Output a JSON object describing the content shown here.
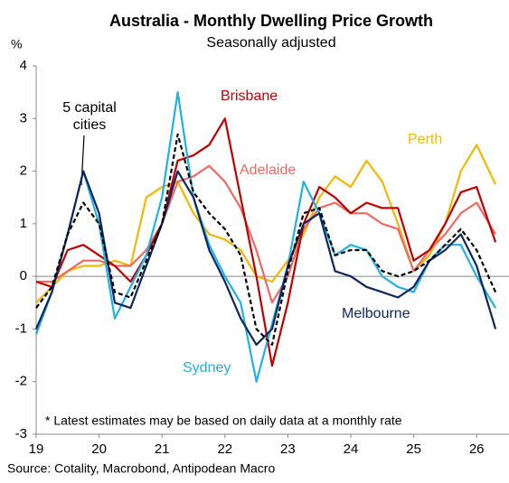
{
  "chart_data": {
    "type": "line",
    "title": "Australia - Monthly Dwelling Price Growth",
    "subtitle": "Seasonally adjusted",
    "y_label": "%",
    "annotation": "* Latest estimates may be based on daily data at a monthly rate",
    "source": "Source: Cotality, Macrobond, Antipodean Macro",
    "x": [
      19,
      19.25,
      19.5,
      19.75,
      20,
      20.25,
      20.5,
      20.75,
      21,
      21.25,
      21.5,
      21.75,
      22,
      22.25,
      22.5,
      22.75,
      23,
      23.25,
      23.5,
      23.75,
      24,
      24.25,
      24.5,
      24.75,
      25,
      25.25,
      25.5,
      25.75,
      26,
      26.3
    ],
    "xlim": [
      19,
      26.55
    ],
    "xticks": [
      19,
      20,
      21,
      22,
      23,
      24,
      25,
      26
    ],
    "ylim": [
      -3,
      4
    ],
    "yticks": [
      -3,
      -2,
      -1,
      0,
      1,
      2,
      3,
      4
    ],
    "series": [
      {
        "name": "Perth",
        "color": "#f5b800",
        "values": [
          -0.5,
          -0.2,
          0.1,
          0.2,
          0.2,
          0.3,
          0.2,
          1.5,
          1.7,
          1.8,
          1.2,
          0.8,
          0.7,
          0.5,
          0.0,
          -0.1,
          0.3,
          0.8,
          1.5,
          1.9,
          1.7,
          2.2,
          1.8,
          1.0,
          0.1,
          0.4,
          1.0,
          2.0,
          2.5,
          1.75
        ]
      },
      {
        "name": "Adelaide",
        "color": "#ee6a62",
        "values": [
          -0.1,
          -0.1,
          0.1,
          0.3,
          0.3,
          0.2,
          0.2,
          0.5,
          1.0,
          1.8,
          1.9,
          2.1,
          1.8,
          1.3,
          0.5,
          -0.5,
          0.0,
          0.9,
          1.3,
          1.4,
          1.2,
          1.2,
          1.0,
          0.9,
          0.1,
          0.5,
          0.8,
          1.2,
          1.4,
          0.8
        ]
      },
      {
        "name": "Brisbane",
        "color": "#c00000",
        "values": [
          -0.1,
          -0.2,
          0.5,
          0.6,
          0.4,
          0.2,
          -0.1,
          0.4,
          1.0,
          2.2,
          2.3,
          2.5,
          3.0,
          1.5,
          0.0,
          -1.7,
          -0.5,
          1.0,
          1.7,
          1.5,
          1.2,
          1.4,
          1.3,
          1.3,
          0.3,
          0.5,
          1.0,
          1.6,
          1.7,
          0.65
        ]
      },
      {
        "name": "Sydney",
        "color": "#1fb2e6",
        "values": [
          -1.1,
          -0.3,
          0.8,
          2.0,
          1.0,
          -0.8,
          -0.2,
          0.4,
          1.5,
          3.5,
          1.5,
          0.6,
          0.0,
          -0.5,
          -2.0,
          -0.9,
          0.2,
          1.8,
          1.2,
          0.4,
          0.6,
          0.5,
          0.0,
          -0.2,
          -0.3,
          0.3,
          0.6,
          0.6,
          0.0,
          -0.6
        ]
      },
      {
        "name": "Melbourne",
        "color": "#0d2660",
        "values": [
          -1.0,
          -0.3,
          0.8,
          2.0,
          1.2,
          -0.5,
          -0.6,
          0.2,
          1.0,
          2.0,
          1.5,
          0.5,
          -0.1,
          -0.8,
          -1.3,
          -1.0,
          0.2,
          1.0,
          1.2,
          0.1,
          0.0,
          -0.2,
          -0.3,
          -0.4,
          -0.2,
          0.3,
          0.5,
          0.8,
          0.2,
          -1.0
        ]
      },
      {
        "name": "5 capital cities",
        "color": "#000000",
        "dashed": true,
        "values": [
          -0.6,
          -0.2,
          0.8,
          1.4,
          1.0,
          -0.3,
          -0.4,
          0.3,
          1.0,
          2.7,
          1.6,
          1.2,
          0.9,
          0.4,
          -1.0,
          -1.3,
          0.1,
          1.2,
          1.3,
          0.4,
          0.5,
          0.5,
          0.1,
          0.0,
          0.1,
          0.3,
          0.6,
          0.9,
          0.5,
          -0.3
        ]
      }
    ]
  }
}
